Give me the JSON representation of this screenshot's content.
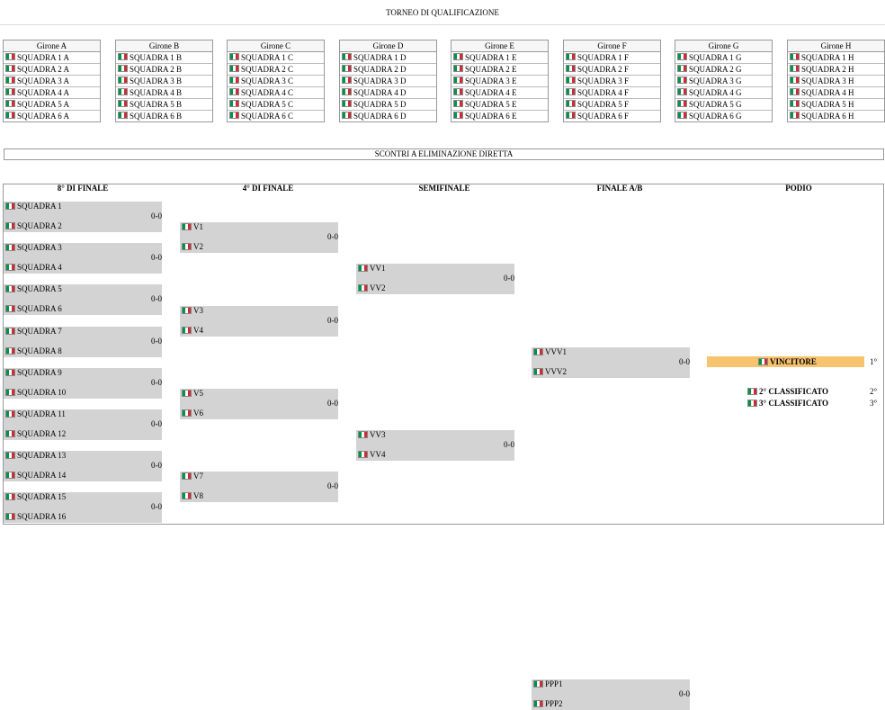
{
  "title": "TORNEO DI QUALIFICAZIONE",
  "groups": [
    {
      "name": "Girone A",
      "teams": [
        "SQUADRA 1 A",
        "SQUADRA 2 A",
        "SQUADRA 3 A",
        "SQUADRA 4 A",
        "SQUADRA 5 A",
        "SQUADRA 6 A"
      ]
    },
    {
      "name": "Girone B",
      "teams": [
        "SQUADRA 1 B",
        "SQUADRA 2 B",
        "SQUADRA 3 B",
        "SQUADRA 4 B",
        "SQUADRA 5 B",
        "SQUADRA 6 B"
      ]
    },
    {
      "name": "Girone C",
      "teams": [
        "SQUADRA 1 C",
        "SQUADRA 2 C",
        "SQUADRA 3 C",
        "SQUADRA 4 C",
        "SQUADRA 5 C",
        "SQUADRA 6 C"
      ]
    },
    {
      "name": "Girone D",
      "teams": [
        "SQUADRA 1 D",
        "SQUADRA 2 D",
        "SQUADRA 3 D",
        "SQUADRA 4 D",
        "SQUADRA 5 D",
        "SQUADRA 6 D"
      ]
    },
    {
      "name": "Girone E",
      "teams": [
        "SQUADRA 1 E",
        "SQUADRA 2 E",
        "SQUADRA 3 E",
        "SQUADRA 4 E",
        "SQUADRA 5 E",
        "SQUADRA 6 E"
      ]
    },
    {
      "name": "Girone F",
      "teams": [
        "SQUADRA 1 F",
        "SQUADRA 2 F",
        "SQUADRA 3 F",
        "SQUADRA 4 F",
        "SQUADRA 5 F",
        "SQUADRA 6 F"
      ]
    },
    {
      "name": "Girone G",
      "teams": [
        "SQUADRA 1 G",
        "SQUADRA 2 G",
        "SQUADRA 3 G",
        "SQUADRA 4 G",
        "SQUADRA 5 G",
        "SQUADRA 6 G"
      ]
    },
    {
      "name": "Girone H",
      "teams": [
        "SQUADRA 1 H",
        "SQUADRA 2 H",
        "SQUADRA 3 H",
        "SQUADRA 4 H",
        "SQUADRA 5 H",
        "SQUADRA 6 H"
      ]
    }
  ],
  "knockout_title": "SCONTRI A ELIMINAZIONE DIRETTA",
  "rounds": [
    {
      "name": "8° DI FINALE",
      "matches": [
        {
          "a": "SQUADRA 1",
          "b": "SQUADRA 2",
          "score": "0-0"
        },
        {
          "a": "SQUADRA 3",
          "b": "SQUADRA 4",
          "score": "0-0"
        },
        {
          "a": "SQUADRA 5",
          "b": "SQUADRA 6",
          "score": "0-0"
        },
        {
          "a": "SQUADRA 7",
          "b": "SQUADRA 8",
          "score": "0-0"
        },
        {
          "a": "SQUADRA 9",
          "b": "SQUADRA 10",
          "score": "0-0"
        },
        {
          "a": "SQUADRA 11",
          "b": "SQUADRA 12",
          "score": "0-0"
        },
        {
          "a": "SQUADRA 13",
          "b": "SQUADRA 14",
          "score": "0-0"
        },
        {
          "a": "SQUADRA 15",
          "b": "SQUADRA 16",
          "score": "0-0"
        }
      ]
    },
    {
      "name": "4° DI FINALE",
      "matches": [
        {
          "a": "V1",
          "b": "V2",
          "score": "0-0"
        },
        {
          "a": "V3",
          "b": "V4",
          "score": "0-0"
        },
        {
          "a": "V5",
          "b": "V6",
          "score": "0-0"
        },
        {
          "a": "V7",
          "b": "V8",
          "score": "0-0"
        }
      ]
    },
    {
      "name": "SEMIFINALE",
      "matches": [
        {
          "a": "VV1",
          "b": "VV2",
          "score": "0-0"
        },
        {
          "a": "VV3",
          "b": "VV4",
          "score": "0-0"
        }
      ]
    },
    {
      "name": "FINALE A/B",
      "matches": [
        {
          "a": "VVV1",
          "b": "VVV2",
          "score": "0-0"
        },
        {
          "a": "PPP1",
          "b": "PPP2",
          "score": "0-0"
        }
      ]
    }
  ],
  "podium": {
    "header": "PODIO",
    "winner": "VINCITORE",
    "first_pos": "1°",
    "second": "2° CLASSIFICATO",
    "second_pos": "2°",
    "third": "3° CLASSIFICATO",
    "third_pos": "3°"
  }
}
